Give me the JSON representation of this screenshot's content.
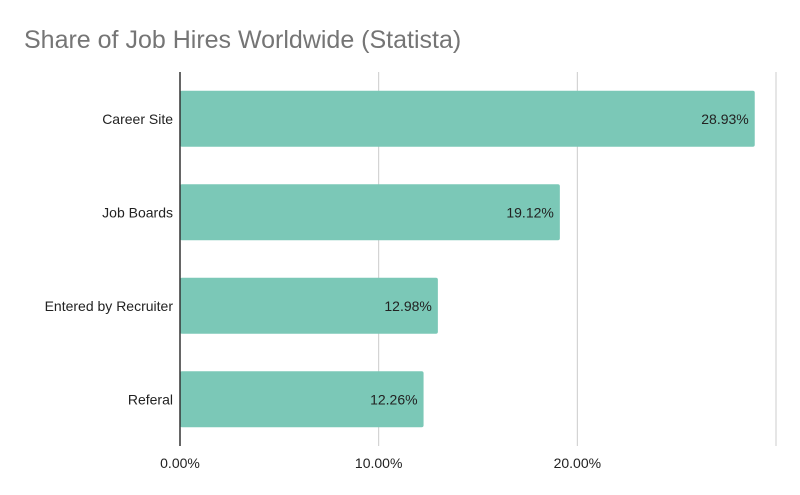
{
  "chart_data": {
    "type": "bar",
    "orientation": "horizontal",
    "title": "Share of Job Hires Worldwide (Statista)",
    "categories": [
      "Career Site",
      "Job Boards",
      "Entered by Recruiter",
      "Referal"
    ],
    "values": [
      28.93,
      19.12,
      12.98,
      12.26
    ],
    "value_labels": [
      "28.93%",
      "19.12%",
      "12.98%",
      "12.26%"
    ],
    "x_ticks": [
      0,
      10,
      20,
      30
    ],
    "x_tick_labels": [
      "0.00%",
      "10.00%",
      "20.00%",
      ""
    ],
    "xlim": [
      0,
      30
    ],
    "grid": true,
    "legend": "none",
    "colors": {
      "bar": "#7bc8b7",
      "grid": "#cccccc",
      "axis": "#333333"
    }
  }
}
